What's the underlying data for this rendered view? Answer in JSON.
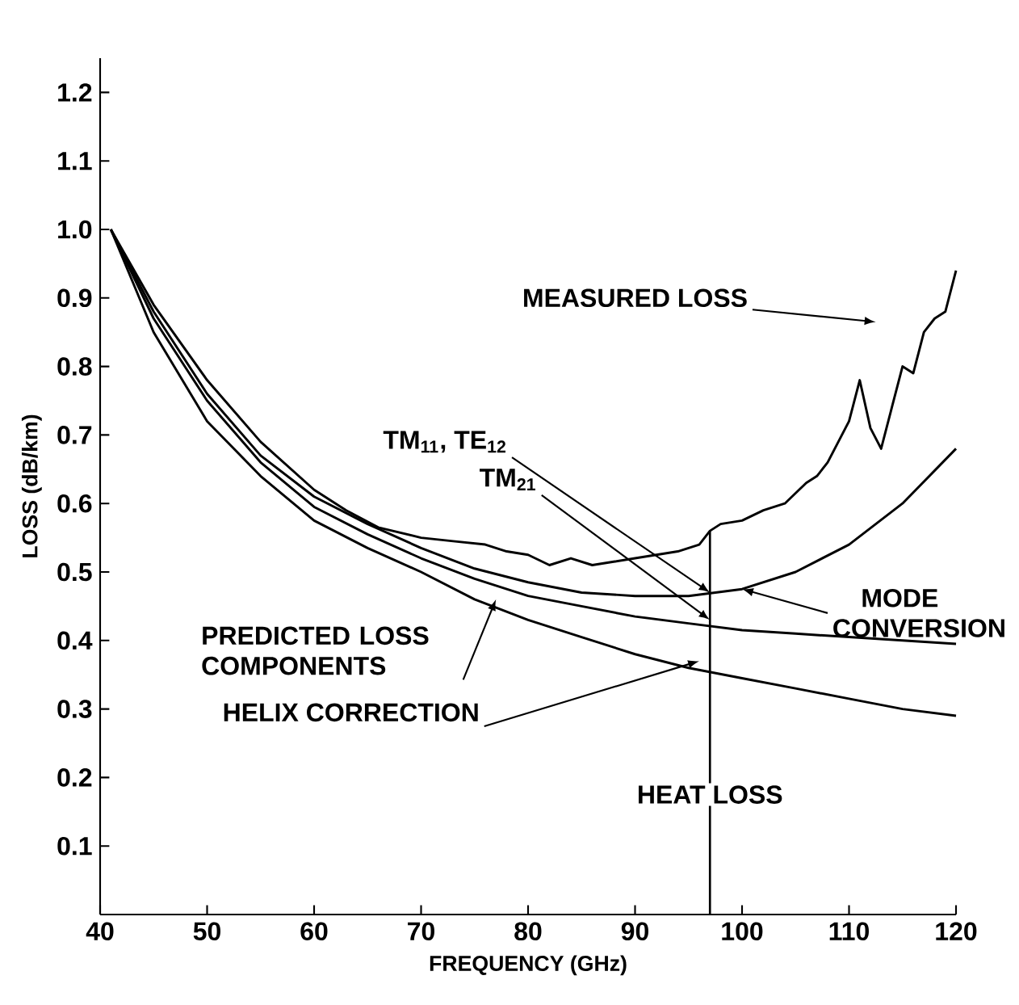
{
  "chart_data": {
    "type": "line",
    "xlabel": "FREQUENCY (GHz)",
    "ylabel": "LOSS (dB/km)",
    "xlim": [
      40,
      120
    ],
    "ylim": [
      0,
      1.25
    ],
    "xticks": [
      40,
      50,
      60,
      70,
      80,
      90,
      100,
      110,
      120
    ],
    "yticks": [
      0.1,
      0.2,
      0.3,
      0.4,
      0.5,
      0.6,
      0.7,
      0.8,
      0.9,
      {
        "value": 1.0,
        "label": "1.0"
      },
      1.1,
      1.2
    ],
    "grid": false,
    "series": [
      {
        "color": "#000000",
        "x": [
          41,
          45,
          50,
          55,
          60,
          63,
          66,
          70,
          73,
          76,
          78,
          80,
          82,
          84,
          86,
          88,
          90,
          92,
          94,
          96,
          97,
          98,
          100,
          102,
          104,
          105,
          106,
          107,
          108,
          109,
          110,
          111,
          112,
          113,
          114,
          115,
          116,
          117,
          118,
          119,
          120
        ],
        "values": [
          1.0,
          0.89,
          0.78,
          0.69,
          0.62,
          0.59,
          0.565,
          0.55,
          0.545,
          0.54,
          0.53,
          0.525,
          0.51,
          0.52,
          0.51,
          0.515,
          0.52,
          0.525,
          0.53,
          0.54,
          0.56,
          0.57,
          0.575,
          0.59,
          0.6,
          0.615,
          0.63,
          0.64,
          0.66,
          0.69,
          0.72,
          0.78,
          0.71,
          0.68,
          0.74,
          0.8,
          0.79,
          0.85,
          0.87,
          0.88,
          0.94
        ]
      },
      {
        "color": "#000000",
        "x": [
          41,
          45,
          50,
          55,
          60,
          65,
          70,
          75,
          80,
          85,
          90,
          95,
          100,
          105,
          110,
          115,
          120
        ],
        "values": [
          1.0,
          0.88,
          0.76,
          0.67,
          0.61,
          0.57,
          0.535,
          0.505,
          0.485,
          0.47,
          0.465,
          0.465,
          0.475,
          0.5,
          0.54,
          0.6,
          0.68
        ]
      },
      {
        "color": "#000000",
        "x": [
          41,
          45,
          50,
          55,
          60,
          65,
          70,
          75,
          80,
          85,
          90,
          95,
          100,
          105,
          110,
          115,
          120
        ],
        "values": [
          1.0,
          0.87,
          0.75,
          0.66,
          0.595,
          0.555,
          0.52,
          0.49,
          0.465,
          0.45,
          0.435,
          0.425,
          0.415,
          0.41,
          0.405,
          0.4,
          0.395
        ]
      },
      {
        "color": "#000000",
        "x": [
          41,
          45,
          50,
          55,
          60,
          65,
          70,
          75,
          80,
          85,
          90,
          95,
          100,
          105,
          110,
          115,
          120
        ],
        "values": [
          1.0,
          0.85,
          0.72,
          0.64,
          0.575,
          0.535,
          0.5,
          0.46,
          0.43,
          0.405,
          0.38,
          0.36,
          0.345,
          0.33,
          0.315,
          0.3,
          0.29
        ]
      }
    ],
    "ref_lines": [
      {
        "axis": "x",
        "value": 97,
        "label": "HEAT LOSS"
      }
    ],
    "annotations": [
      "MEASURED LOSS",
      {
        "text": "TM$_{11}$, TE$_{12}$",
        "x": 97,
        "y": 0.47
      },
      {
        "text": "TM$_{21}$",
        "x": 97,
        "y": 0.43
      },
      {
        "text": "MODE CONVERSION",
        "x": 100,
        "y": 0.475
      },
      {
        "text": "PREDICTED LOSS COMPONENTS",
        "x": 77,
        "y": 0.46
      },
      {
        "text": "HELIX CORRECTION",
        "x": 96,
        "y": 0.37
      }
    ]
  }
}
